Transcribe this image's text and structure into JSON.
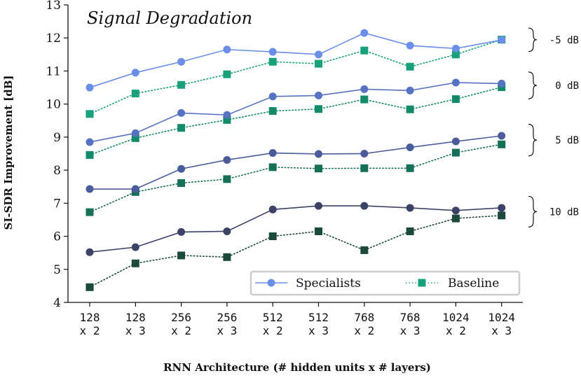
{
  "chart_data": {
    "type": "line",
    "title": "Signal Degradation",
    "xlabel": "RNN Architecture (# hidden units x # layers)",
    "ylabel": "SI-SDR Improvement [dB]",
    "ylim": [
      4,
      13
    ],
    "yticks": [
      "4",
      "5",
      "6",
      "7",
      "8",
      "9",
      "10",
      "11",
      "12",
      "13"
    ],
    "categories": [
      [
        "128",
        "x 2"
      ],
      [
        "128",
        "x 3"
      ],
      [
        "256",
        "x 2"
      ],
      [
        "256",
        "x 3"
      ],
      [
        "512",
        "x 2"
      ],
      [
        "512",
        "x 3"
      ],
      [
        "768",
        "x 2"
      ],
      [
        "768",
        "x 3"
      ],
      [
        "1024",
        "x 2"
      ],
      [
        "1024",
        "x 3"
      ]
    ],
    "groups": [
      {
        "label": "-5 dB",
        "specialists": {
          "color": "#6b8ee8",
          "values": [
            10.5,
            10.95,
            11.28,
            11.65,
            11.58,
            11.5,
            12.15,
            11.77,
            11.68,
            11.94
          ]
        },
        "baseline": {
          "color": "#17a07a",
          "values": [
            9.7,
            10.32,
            10.58,
            10.9,
            11.28,
            11.22,
            11.62,
            11.13,
            11.5,
            11.95
          ]
        }
      },
      {
        "label": "0 dB",
        "specialists": {
          "color": "#5872c2",
          "values": [
            8.85,
            9.12,
            9.73,
            9.67,
            10.23,
            10.26,
            10.45,
            10.41,
            10.65,
            10.62
          ]
        },
        "baseline": {
          "color": "#138a6a",
          "values": [
            8.46,
            8.97,
            9.28,
            9.52,
            9.79,
            9.85,
            10.14,
            9.84,
            10.15,
            10.51
          ]
        }
      },
      {
        "label": "5 dB",
        "specialists": {
          "color": "#4a5c9a",
          "values": [
            7.43,
            7.43,
            8.04,
            8.31,
            8.52,
            8.49,
            8.5,
            8.69,
            8.87,
            9.04
          ]
        },
        "baseline": {
          "color": "#167058",
          "values": [
            6.73,
            7.34,
            7.61,
            7.73,
            8.09,
            8.05,
            8.06,
            8.06,
            8.53,
            8.78
          ]
        }
      },
      {
        "label": "10 dB",
        "specialists": {
          "color": "#3b4266",
          "values": [
            5.52,
            5.67,
            6.13,
            6.15,
            6.81,
            6.92,
            6.92,
            6.86,
            6.78,
            6.86
          ]
        },
        "baseline": {
          "color": "#1b4a3c",
          "values": [
            4.46,
            5.18,
            5.42,
            5.37,
            6.0,
            6.15,
            5.58,
            6.15,
            6.54,
            6.63
          ]
        }
      }
    ],
    "legend": {
      "position": "lower-right",
      "entries": [
        {
          "label": "Specialists",
          "marker": "circle",
          "style": "solid",
          "color": "#6b8ee8"
        },
        {
          "label": "Baseline",
          "marker": "square",
          "style": "dotted",
          "color": "#17a07a"
        }
      ]
    }
  }
}
